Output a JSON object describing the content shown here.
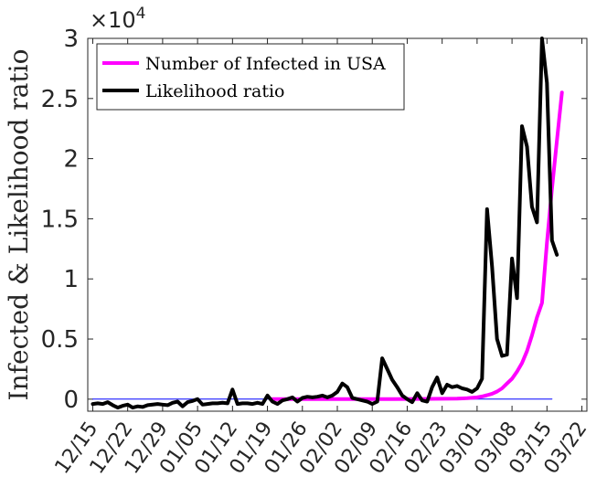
{
  "chart_data": {
    "type": "line",
    "title": "",
    "xlabel": "",
    "ylabel": "Infected & Likelihood ratio",
    "y_exponent_label": "×10",
    "y_exponent_power": "4",
    "ylim": [
      -0.1,
      3.0
    ],
    "xlim_days": [
      -1,
      99
    ],
    "yticks": [
      0,
      0.5,
      1,
      1.5,
      2,
      2.5,
      3
    ],
    "ytick_labels": [
      "0",
      "0.5",
      "1",
      "1.5",
      "2",
      "2.5",
      "3"
    ],
    "xticks_days": [
      0,
      7,
      14,
      21,
      28,
      35,
      42,
      49,
      56,
      63,
      70,
      77,
      84,
      91,
      98
    ],
    "xtick_labels": [
      "12/15",
      "12/22",
      "12/29",
      "01/05",
      "01/12",
      "01/19",
      "01/26",
      "02/02",
      "02/09",
      "02/16",
      "02/23",
      "03/01",
      "03/08",
      "03/15",
      "03/22"
    ],
    "grid": false,
    "legend_position": "top-left",
    "series": [
      {
        "name": "Number of Infected in USA",
        "color": "#ff00ff",
        "x": [
          36,
          40,
          45,
          50,
          55,
          60,
          65,
          70,
          73,
          75,
          77,
          78,
          79,
          80,
          81,
          82,
          83,
          84,
          85,
          86,
          87,
          88,
          89,
          90,
          91,
          92,
          93,
          94
        ],
        "y": [
          0.001,
          0.001,
          0.001,
          0.001,
          0.001,
          0.001,
          0.002,
          0.003,
          0.005,
          0.008,
          0.015,
          0.022,
          0.033,
          0.045,
          0.063,
          0.09,
          0.13,
          0.17,
          0.23,
          0.3,
          0.4,
          0.53,
          0.68,
          0.8,
          1.3,
          1.75,
          2.15,
          2.55
        ]
      },
      {
        "name": "Likelihood ratio",
        "color": "#000000",
        "x": [
          0,
          1,
          2,
          3,
          4,
          5,
          6,
          7,
          8,
          9,
          10,
          11,
          12,
          13,
          14,
          15,
          16,
          17,
          18,
          19,
          20,
          21,
          22,
          23,
          24,
          25,
          26,
          27,
          28,
          29,
          30,
          31,
          32,
          33,
          34,
          35,
          36,
          37,
          38,
          39,
          40,
          41,
          42,
          43,
          44,
          45,
          46,
          47,
          48,
          49,
          50,
          51,
          52,
          53,
          54,
          55,
          56,
          57,
          58,
          59,
          60,
          61,
          62,
          63,
          64,
          65,
          66,
          67,
          68,
          69,
          70,
          71,
          72,
          73,
          74,
          75,
          76,
          77,
          78,
          79,
          80,
          81,
          82,
          83,
          84,
          85,
          86,
          87,
          88,
          89,
          90,
          91,
          92,
          93
        ],
        "y": [
          -0.04,
          -0.035,
          -0.04,
          -0.025,
          -0.05,
          -0.07,
          -0.055,
          -0.045,
          -0.07,
          -0.06,
          -0.065,
          -0.05,
          -0.045,
          -0.04,
          -0.045,
          -0.05,
          -0.03,
          -0.02,
          -0.06,
          -0.025,
          -0.015,
          0.0,
          -0.045,
          -0.04,
          -0.035,
          -0.035,
          -0.03,
          -0.035,
          0.08,
          -0.04,
          -0.035,
          -0.035,
          -0.04,
          -0.03,
          -0.04,
          0.03,
          -0.02,
          -0.04,
          -0.01,
          0.0,
          0.015,
          -0.02,
          0.01,
          0.02,
          0.015,
          0.02,
          0.03,
          0.015,
          0.03,
          0.06,
          0.13,
          0.1,
          0.01,
          0.0,
          -0.01,
          -0.02,
          -0.04,
          -0.02,
          0.34,
          0.25,
          0.16,
          0.1,
          0.03,
          0.0,
          -0.025,
          0.05,
          -0.01,
          -0.02,
          0.1,
          0.18,
          0.05,
          0.12,
          0.1,
          0.11,
          0.09,
          0.08,
          0.06,
          0.09,
          0.17,
          1.58,
          1.1,
          0.5,
          0.36,
          0.37,
          1.17,
          0.84,
          2.27,
          2.1,
          1.6,
          1.47,
          3.0,
          2.63,
          1.32,
          1.2
        ]
      },
      {
        "name": "zero baseline",
        "color": "#0000ff",
        "x": [
          0,
          92
        ],
        "y": [
          0,
          0
        ]
      }
    ]
  }
}
